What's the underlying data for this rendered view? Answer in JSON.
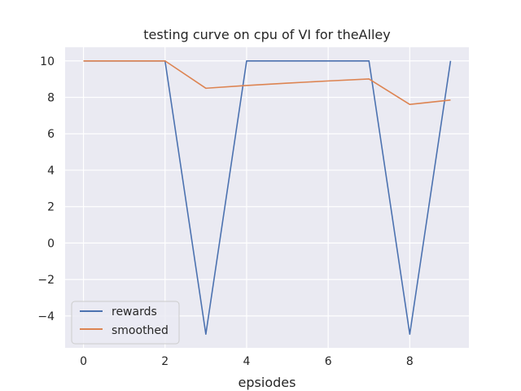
{
  "chart_data": {
    "type": "line",
    "title": "testing curve on cpu of VI for theAlley",
    "xlabel": "epsiodes",
    "ylabel": "",
    "x": [
      0,
      1,
      2,
      3,
      4,
      5,
      6,
      7,
      8,
      9
    ],
    "xlim": [
      -0.45,
      9.45
    ],
    "ylim": [
      -5.75,
      10.75
    ],
    "xticks": [
      0,
      2,
      4,
      6,
      8
    ],
    "yticks": [
      10,
      8,
      6,
      4,
      2,
      0,
      -2,
      -4
    ],
    "ytick_labels": [
      "10",
      "8",
      "6",
      "4",
      "2",
      "0",
      "−2",
      "−4"
    ],
    "grid": true,
    "legend_placement": "lower-left",
    "series": [
      {
        "name": "rewards",
        "color": "#4c72b0",
        "values": [
          10,
          10,
          10,
          -5,
          10,
          10,
          10,
          10,
          -5,
          10
        ]
      },
      {
        "name": "smoothed",
        "color": "#dd8452",
        "values": [
          10,
          10,
          10,
          8.5,
          8.65,
          8.78,
          8.9,
          9.01,
          7.61,
          7.85
        ]
      }
    ]
  }
}
